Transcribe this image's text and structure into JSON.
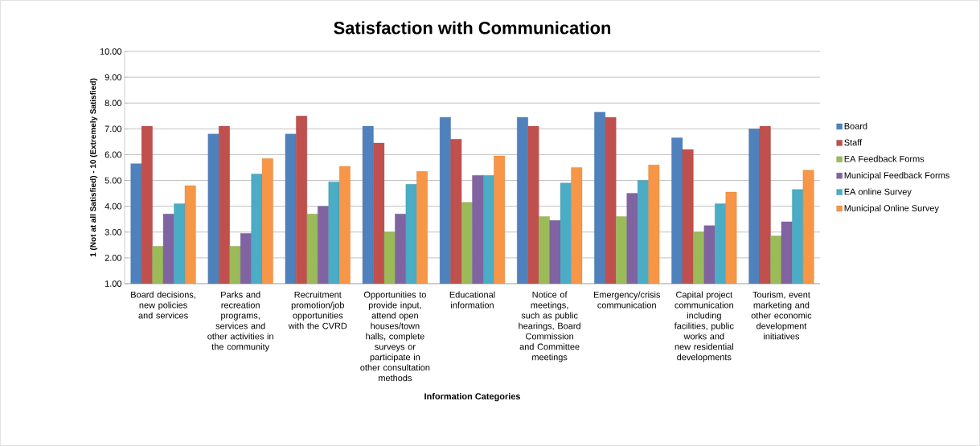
{
  "chart_data": {
    "type": "bar",
    "title": "Satisfaction with Communication",
    "xlabel": "Information Categories",
    "ylabel": "1 (Not at all Satisfied) - 10 (Extremely Satisfied)",
    "categories": [
      "Board decisions, new policies and services",
      "Parks and recreation programs, services and other activities in the community",
      "Recruitment promotion/job opportunities with the CVRD",
      "Opportunities to provide input, attend open houses/town halls, complete surveys or participate in other consultation methods",
      "Educational information",
      "Notice of meetings, such as public hearings, Board Commission and Committee meetings",
      "Emergency/crisis communication",
      "Capital project communication including facilities, public works and new residential developments",
      "Tourism, event marketing and other economic development initiatives"
    ],
    "series": [
      {
        "name": "Board",
        "color": "#4f81bd",
        "values": [
          5.65,
          6.8,
          6.8,
          7.1,
          7.45,
          7.45,
          7.65,
          6.65,
          7.0
        ]
      },
      {
        "name": "Staff",
        "color": "#c0504d",
        "values": [
          7.1,
          7.1,
          7.5,
          6.45,
          6.6,
          7.1,
          7.45,
          6.2,
          7.1
        ]
      },
      {
        "name": "EA Feedback Forms",
        "color": "#9bbb59",
        "values": [
          2.45,
          2.45,
          3.7,
          3.0,
          4.15,
          3.6,
          3.6,
          3.0,
          2.85
        ]
      },
      {
        "name": "Municipal Feedback Forms",
        "color": "#8064a2",
        "values": [
          3.7,
          2.95,
          4.0,
          3.7,
          5.2,
          3.45,
          4.5,
          3.25,
          3.4
        ]
      },
      {
        "name": "EA online Survey",
        "color": "#4bacc6",
        "values": [
          4.1,
          5.25,
          4.95,
          4.85,
          5.2,
          4.9,
          5.0,
          4.1,
          4.65
        ]
      },
      {
        "name": "Municipal Online Survey",
        "color": "#f79646",
        "values": [
          4.8,
          5.85,
          5.55,
          5.35,
          5.95,
          5.5,
          5.6,
          4.55,
          5.4
        ]
      }
    ],
    "ylim": [
      1,
      10
    ],
    "yticks": [
      {
        "value": 1,
        "label": "1.00"
      },
      {
        "value": 2,
        "label": "2.00"
      },
      {
        "value": 3,
        "label": "3.00"
      },
      {
        "value": 4,
        "label": "4.00"
      },
      {
        "value": 5,
        "label": "5.00"
      },
      {
        "value": 6,
        "label": "6.00"
      },
      {
        "value": 7,
        "label": "7.00"
      },
      {
        "value": 8,
        "label": "8.00"
      },
      {
        "value": 9,
        "label": "9.00"
      },
      {
        "value": 10,
        "label": "10.00"
      }
    ],
    "grid": "y",
    "legend": "right"
  }
}
